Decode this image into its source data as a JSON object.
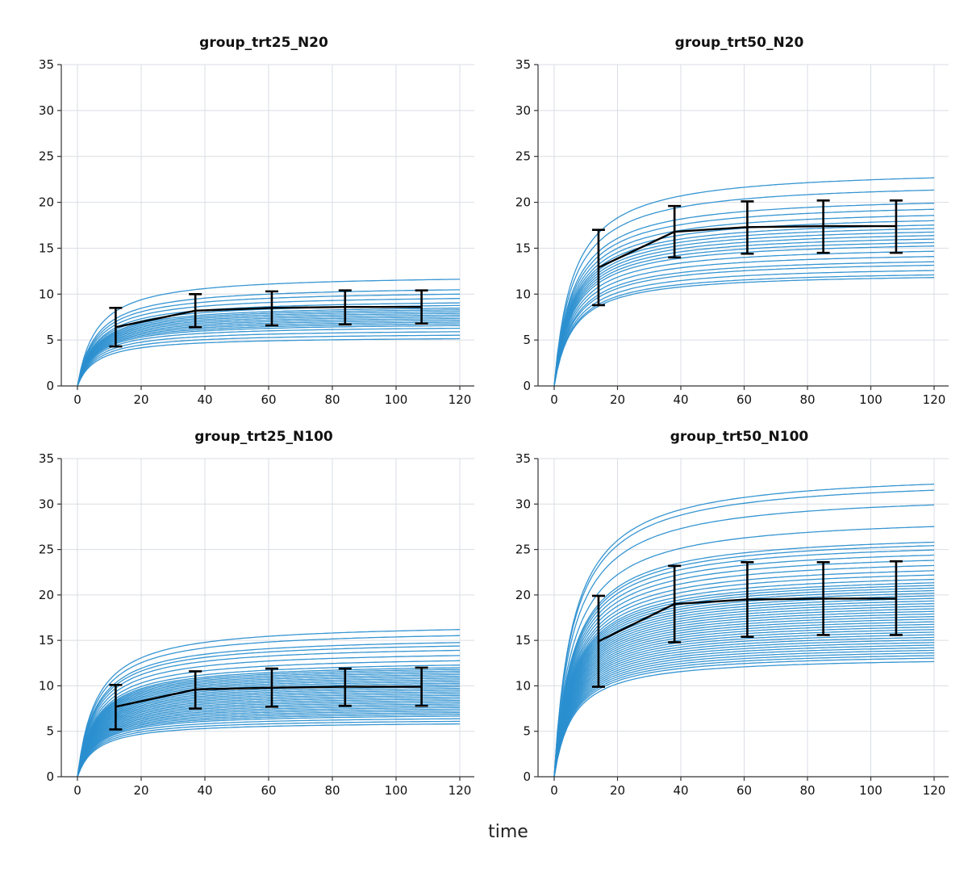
{
  "figure": {
    "xlabel": "time",
    "line_color": "#2b8fd0",
    "mean_color": "#000000",
    "grid_color": "#d9dde4"
  },
  "chart_data": [
    {
      "type": "line",
      "title": "group_trt25_N20",
      "xlim": [
        0,
        120
      ],
      "ylim": [
        0,
        35
      ],
      "xticks": [
        0,
        20,
        40,
        60,
        80,
        100,
        120
      ],
      "yticks": [
        0,
        5,
        10,
        15,
        20,
        25,
        30,
        35
      ],
      "grid": true,
      "subject_asymptotes": [
        5.4,
        5.8,
        6.2,
        6.6,
        6.9,
        7.1,
        7.3,
        7.5,
        7.7,
        7.9,
        8.1,
        8.3,
        8.5,
        8.7,
        8.9,
        9.2,
        9.5,
        10.0,
        10.5,
        11.0,
        12.2
      ],
      "rate_k": 6,
      "mean": {
        "x": [
          12,
          37,
          61,
          84,
          108
        ],
        "y": [
          6.4,
          8.2,
          8.5,
          8.6,
          8.6
        ],
        "err_low": [
          4.3,
          6.4,
          6.6,
          6.7,
          6.8
        ],
        "err_high": [
          8.5,
          10.0,
          10.3,
          10.4,
          10.4
        ]
      }
    },
    {
      "type": "line",
      "title": "group_trt50_N20",
      "xlim": [
        0,
        120
      ],
      "ylim": [
        0,
        35
      ],
      "xticks": [
        0,
        20,
        40,
        60,
        80,
        100,
        120
      ],
      "yticks": [
        0,
        5,
        10,
        15,
        20,
        25,
        30,
        35
      ],
      "grid": true,
      "subject_asymptotes": [
        12.4,
        12.7,
        13.2,
        13.8,
        14.2,
        14.8,
        15.4,
        16.0,
        16.4,
        16.8,
        17.2,
        17.6,
        18.0,
        18.4,
        18.9,
        19.5,
        20.2,
        20.9,
        22.4,
        23.8
      ],
      "rate_k": 6,
      "mean": {
        "x": [
          14,
          38,
          61,
          85,
          108
        ],
        "y": [
          12.9,
          16.8,
          17.3,
          17.4,
          17.4
        ],
        "err_low": [
          8.8,
          14.0,
          14.4,
          14.5,
          14.5
        ],
        "err_high": [
          17.0,
          19.6,
          20.1,
          20.2,
          20.2
        ]
      }
    },
    {
      "type": "line",
      "title": "group_trt25_N100",
      "xlim": [
        0,
        120
      ],
      "ylim": [
        0,
        35
      ],
      "xticks": [
        0,
        20,
        40,
        60,
        80,
        100,
        120
      ],
      "yticks": [
        0,
        5,
        10,
        15,
        20,
        25,
        30,
        35
      ],
      "grid": true,
      "subject_asymptotes": [
        6.1,
        6.4,
        6.7,
        7.0,
        7.2,
        7.4,
        7.6,
        7.8,
        8.0,
        8.2,
        8.4,
        8.6,
        8.8,
        9.0,
        9.2,
        9.4,
        9.6,
        9.8,
        10.0,
        10.2,
        10.4,
        10.6,
        10.8,
        11.0,
        11.2,
        11.4,
        11.6,
        11.8,
        12.0,
        12.2,
        12.4,
        12.6,
        12.9,
        13.4,
        14.0,
        14.6,
        15.1,
        15.5,
        16.3,
        17.0
      ],
      "rate_k": 6,
      "mean": {
        "x": [
          12,
          37,
          61,
          84,
          108
        ],
        "y": [
          7.7,
          9.6,
          9.8,
          9.9,
          9.9
        ],
        "err_low": [
          5.2,
          7.5,
          7.7,
          7.8,
          7.8
        ],
        "err_high": [
          10.1,
          11.6,
          11.9,
          11.9,
          12.0
        ]
      }
    },
    {
      "type": "line",
      "title": "group_trt50_N100",
      "xlim": [
        0,
        120
      ],
      "ylim": [
        0,
        35
      ],
      "xticks": [
        0,
        20,
        40,
        60,
        80,
        100,
        120
      ],
      "yticks": [
        0,
        5,
        10,
        15,
        20,
        25,
        30,
        35
      ],
      "grid": true,
      "subject_asymptotes": [
        13.3,
        13.7,
        14.0,
        14.3,
        14.6,
        14.9,
        15.2,
        15.5,
        15.8,
        16.1,
        16.4,
        16.7,
        17.0,
        17.3,
        17.6,
        17.9,
        18.2,
        18.5,
        18.8,
        19.1,
        19.4,
        19.7,
        20.0,
        20.3,
        20.6,
        20.9,
        21.2,
        21.5,
        21.8,
        22.1,
        22.4,
        22.8,
        23.3,
        23.8,
        24.4,
        25.0,
        25.6,
        26.2,
        26.7,
        27.1,
        28.9,
        31.4,
        33.1,
        33.8
      ],
      "rate_k": 6,
      "mean": {
        "x": [
          14,
          38,
          61,
          85,
          108
        ],
        "y": [
          14.9,
          19.0,
          19.5,
          19.6,
          19.6
        ],
        "err_low": [
          9.9,
          14.8,
          15.4,
          15.6,
          15.6
        ],
        "err_high": [
          19.9,
          23.2,
          23.6,
          23.6,
          23.7
        ]
      }
    }
  ]
}
